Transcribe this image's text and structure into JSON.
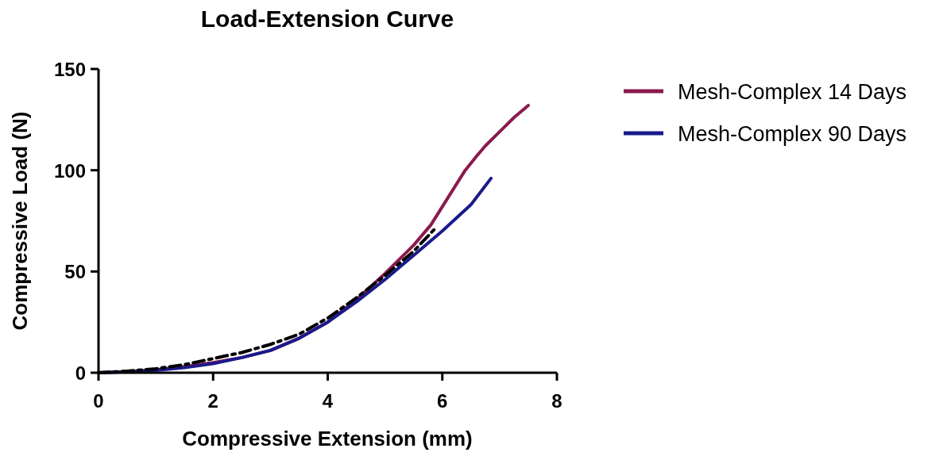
{
  "chart_data": {
    "type": "line",
    "title": "Load-Extension Curve",
    "xlabel": "Compressive Extension (mm)",
    "ylabel": "Compressive Load (N)",
    "xlim": [
      0,
      8
    ],
    "xticks": [
      0,
      2,
      4,
      6,
      8
    ],
    "ylim": [
      0,
      150
    ],
    "yticks": [
      0,
      50,
      100,
      150
    ],
    "grid": false,
    "legend": "top right",
    "marker": "none",
    "series": [
      {
        "name": "Mesh-Complex 14 Days",
        "color": "#8b1a4e",
        "line_style": "solid",
        "x": [
          0,
          0.5,
          1,
          1.5,
          2,
          2.5,
          3,
          3.5,
          4,
          4.5,
          5,
          5.5,
          5.8,
          6,
          6.2,
          6.4,
          6.6,
          6.75,
          7,
          7.25,
          7.5
        ],
        "values": [
          0,
          0.6,
          1.5,
          3,
          5,
          7.5,
          11,
          17,
          25,
          36,
          49,
          63,
          73,
          82,
          91,
          100,
          107,
          112,
          119,
          126,
          132
        ]
      },
      {
        "name": "Mesh-Complex 90 Days",
        "color": "#1a1a8c",
        "line_style": "solid",
        "x": [
          0,
          0.5,
          1,
          1.5,
          2,
          2.5,
          3,
          3.5,
          4,
          4.5,
          5,
          5.5,
          6,
          6.5,
          6.85
        ],
        "values": [
          0,
          0.5,
          1.2,
          2.5,
          4.5,
          7.5,
          11,
          17,
          25,
          35,
          46,
          58,
          70,
          83,
          96
        ]
      },
      {
        "color": "#000000",
        "line_style": "dashed",
        "x": [
          0,
          0.5,
          1,
          1.5,
          2,
          2.5,
          3,
          3.5,
          4,
          4.5,
          5,
          5.5,
          5.9
        ],
        "values": [
          0,
          0.8,
          2,
          4,
          7,
          10,
          14,
          19,
          27,
          37,
          48,
          60,
          72
        ]
      }
    ]
  }
}
